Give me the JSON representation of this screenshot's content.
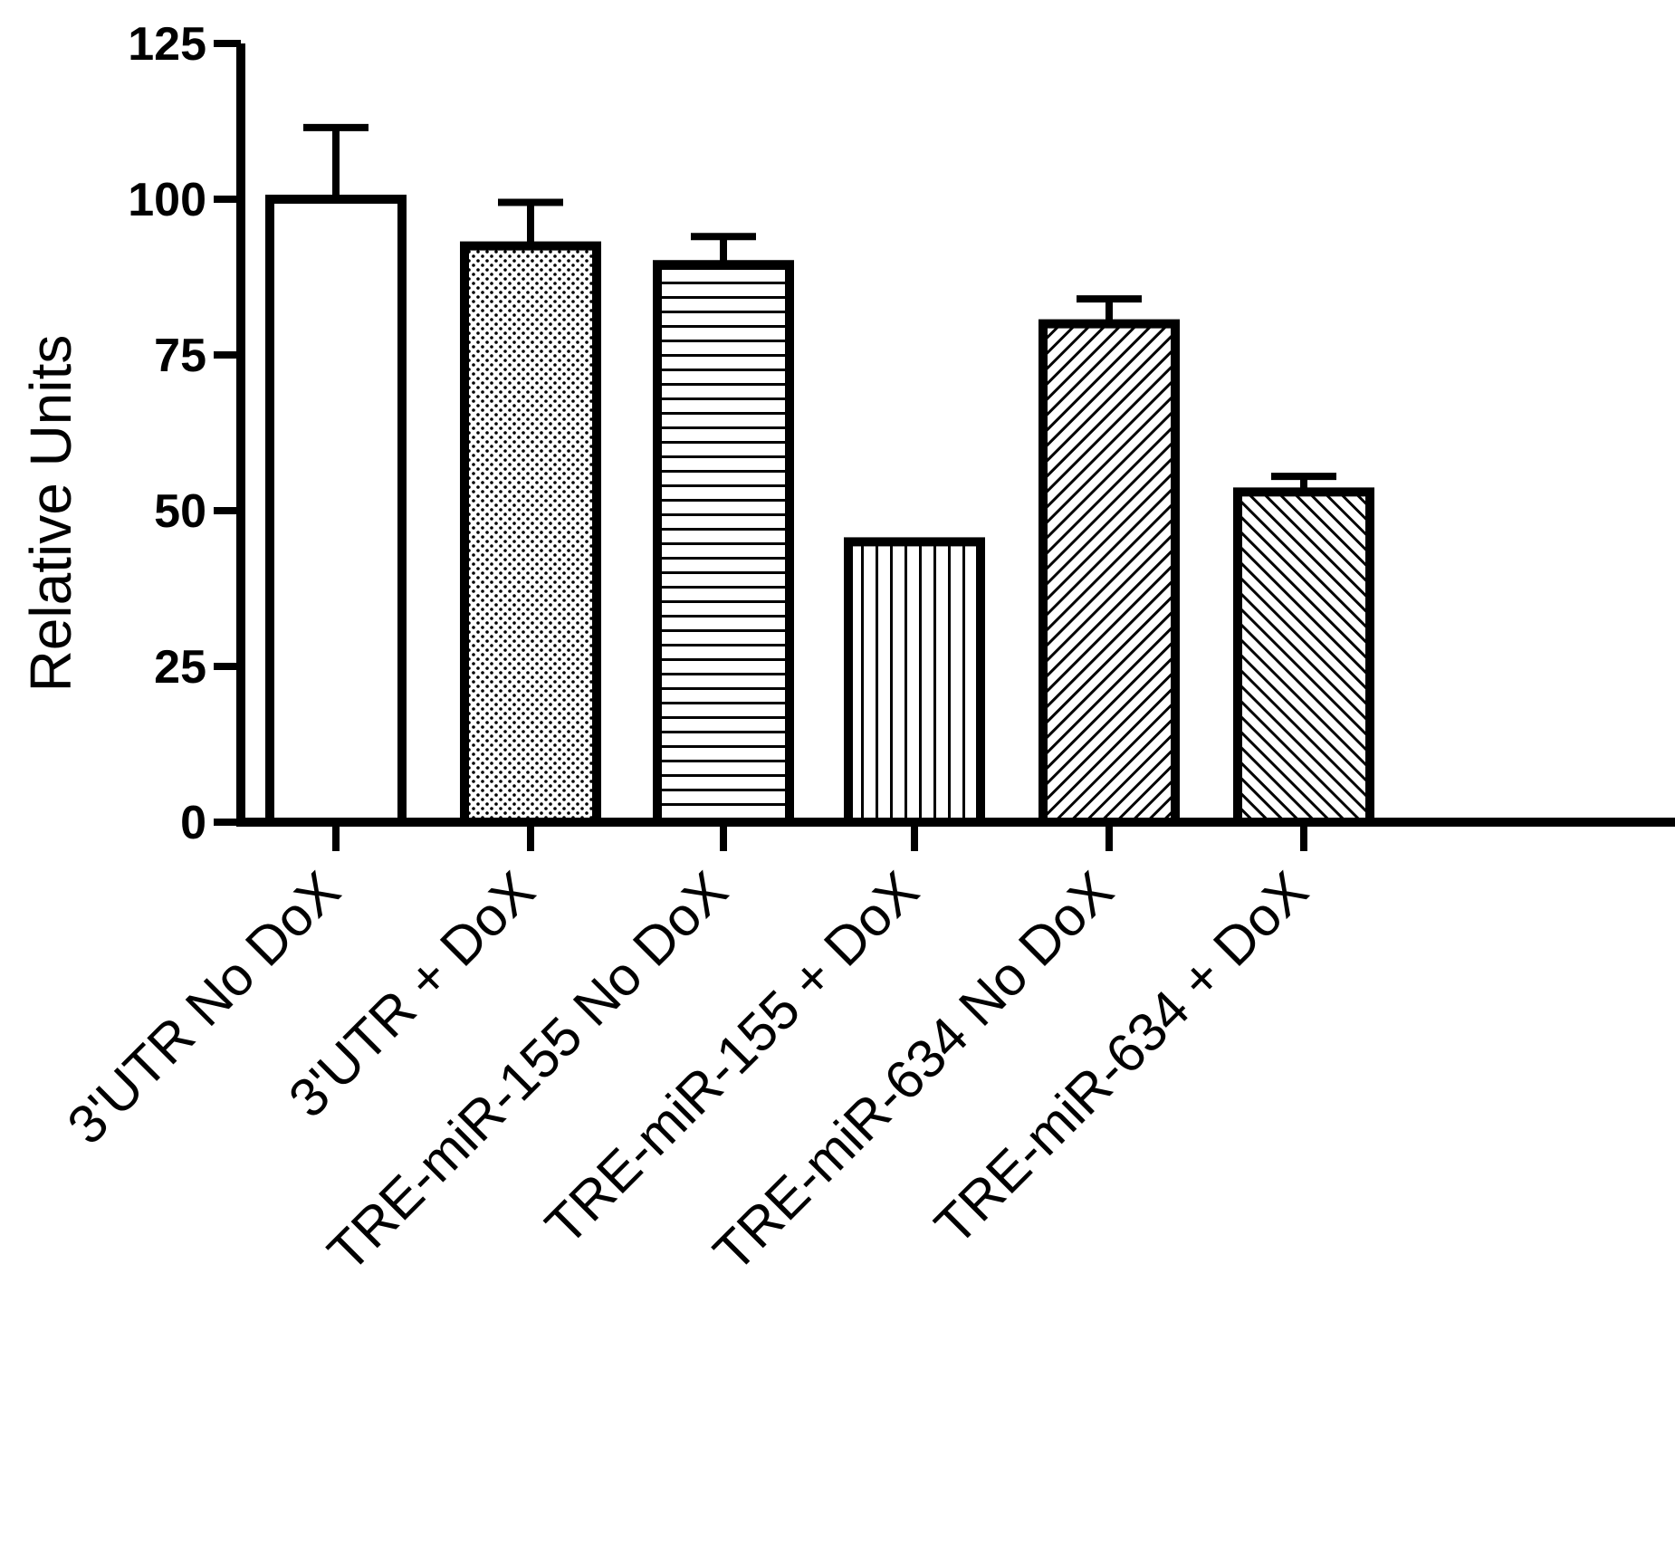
{
  "chart_data": {
    "type": "bar",
    "title": "",
    "xlabel": "",
    "ylabel": "Relative Units",
    "ylim": [
      0,
      125
    ],
    "yticks": [
      "0",
      "25",
      "50",
      "75",
      "100",
      "125"
    ],
    "grid": false,
    "legend": "none",
    "categories": [
      "3'UTR No DoX",
      "3'UTR + DoX",
      "TRE-miR-155 No DoX",
      "TRE-miR-155 + DoX",
      "TRE-miR-634 No DoX",
      "TRE-miR-634 + DoX"
    ],
    "values": [
      100,
      92.5,
      89.5,
      45,
      80,
      53
    ],
    "error_upper": [
      111.5,
      99.5,
      94,
      45,
      84,
      55.5
    ],
    "fill_patterns": [
      "none",
      "dots",
      "horizontal-lines",
      "vertical-lines",
      "diagonal-forward",
      "diagonal-backward"
    ],
    "colors": {
      "ink": "#000000",
      "background": "#ffffff"
    }
  }
}
